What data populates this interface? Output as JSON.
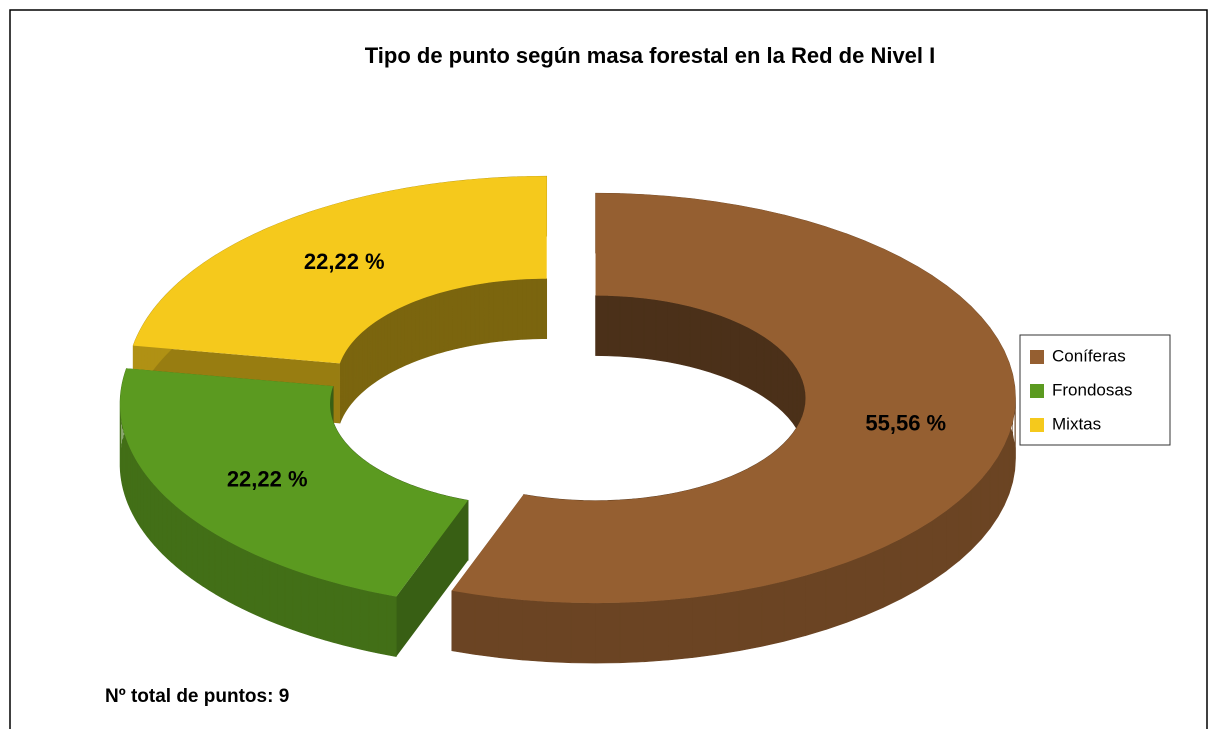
{
  "chart_data": {
    "type": "donut3d",
    "title": "Tipo de punto según masa forestal en la Red de Nivel I",
    "categories": [
      "Coníferas",
      "Frondosas",
      "Mixtas"
    ],
    "values": [
      55.56,
      22.22,
      22.22
    ],
    "value_labels": [
      "55,56 %",
      "22,22 %",
      "22,22 %"
    ],
    "colors": [
      "#955f31",
      "#5b9a20",
      "#f5c91c"
    ],
    "legend": "right",
    "annotation": "Nº total de puntos: 9"
  }
}
